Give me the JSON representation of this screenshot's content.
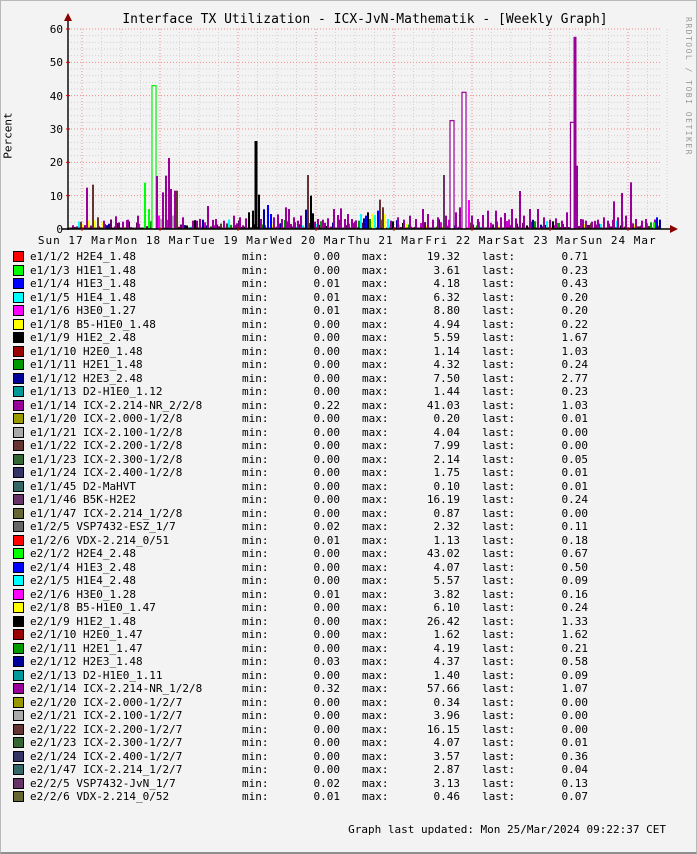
{
  "header": {
    "title": "Interface TX Utilization - ICX-JvN-Mathematik - [Weekly Graph]"
  },
  "watermark": "RRDTOOL / TOBI OETIKER",
  "footer": "Graph last updated: Mon 25/Mar/2024 09:22:37 CET",
  "chart_data": {
    "type": "bar",
    "title": "Interface TX Utilization - ICX-JvN-Mathematik - [Weekly Graph]",
    "ylabel": "Percent",
    "ylim": [
      0,
      60
    ],
    "yticks": [
      0,
      10,
      20,
      30,
      40,
      50,
      60
    ],
    "xticklabels": [
      "Sun 17 Mar",
      "Mon 18 Mar",
      "Tue 19 Mar",
      "Wed 20 Mar",
      "Thu 21 Mar",
      "Fri 22 Mar",
      "Sat 23 Mar",
      "Sun 24 Mar"
    ],
    "grid": {
      "major_color": "#ef8e8e",
      "minor_color": "#d2d2d2",
      "style": "dotted"
    },
    "axis_arrow_color": "#8b0000",
    "palette": {
      "P": {
        "f": "#990099"
      },
      "M": {
        "f": "#FF00FF"
      },
      "G": {
        "f": "#00FF00"
      },
      "GW": {
        "f": "#ffffff",
        "s": "#00EE00"
      },
      "PW": {
        "f": "#ffffff",
        "s": "#990099"
      },
      "GRY": {
        "f": "#AAAAAA"
      },
      "BR": {
        "f": "#663333"
      },
      "K": {
        "f": "#000000"
      },
      "NB": {
        "f": "#000099"
      },
      "B": {
        "f": "#0000FF"
      },
      "C": {
        "f": "#00FFFF"
      },
      "Y": {
        "f": "#FFFF00"
      },
      "GRN2": {
        "f": "#009900"
      },
      "DP": {
        "f": "#663366"
      }
    },
    "spikes": [
      [
        19,
        12.4,
        "P"
      ],
      [
        25,
        13.3,
        "BR"
      ],
      [
        30,
        3.5,
        "BR"
      ],
      [
        36,
        2.5,
        "P"
      ],
      [
        48,
        3.8,
        "P"
      ],
      [
        55,
        2.2,
        "P"
      ],
      [
        60,
        2.8,
        "P"
      ],
      [
        70,
        4,
        "P"
      ],
      [
        77,
        13.9,
        "G"
      ],
      [
        81,
        6,
        "G"
      ],
      [
        84,
        2.5,
        "M"
      ],
      [
        86,
        43.0,
        "GW",
        4
      ],
      [
        89,
        15.9,
        "P"
      ],
      [
        91,
        4,
        "M"
      ],
      [
        93,
        3,
        "GRY"
      ],
      [
        95,
        11,
        "P"
      ],
      [
        98,
        16,
        "P"
      ],
      [
        101,
        21.3,
        "P"
      ],
      [
        103,
        12,
        "P"
      ],
      [
        105,
        4,
        "GRY"
      ],
      [
        107,
        11.5,
        "P"
      ],
      [
        109,
        11.5,
        "BR"
      ],
      [
        115,
        3.5,
        "P"
      ],
      [
        125,
        2.5,
        "P"
      ],
      [
        132,
        3,
        "P"
      ],
      [
        140,
        6.9,
        "P"
      ],
      [
        148,
        3,
        "P"
      ],
      [
        156,
        2.5,
        "P"
      ],
      [
        166,
        4,
        "P"
      ],
      [
        172,
        3.5,
        "P"
      ],
      [
        178,
        3.2,
        "P"
      ],
      [
        181,
        5,
        "K"
      ],
      [
        185,
        5.5,
        "K"
      ],
      [
        188,
        26.4,
        "K",
        3
      ],
      [
        191,
        10.3,
        "K"
      ],
      [
        193,
        3,
        "P"
      ],
      [
        196,
        5.9,
        "NB"
      ],
      [
        200,
        7.2,
        "B"
      ],
      [
        203,
        4.5,
        "B"
      ],
      [
        206,
        3.5,
        "P"
      ],
      [
        210,
        4.4,
        "P"
      ],
      [
        214,
        3,
        "P"
      ],
      [
        218,
        6.5,
        "P"
      ],
      [
        221,
        6,
        "P"
      ],
      [
        226,
        3.5,
        "P"
      ],
      [
        230,
        2.5,
        "P"
      ],
      [
        233,
        4,
        "P"
      ],
      [
        238,
        5.8,
        "NB"
      ],
      [
        240,
        16.2,
        "BR"
      ],
      [
        243,
        10,
        "K"
      ],
      [
        245,
        4.7,
        "K"
      ],
      [
        250,
        3,
        "P"
      ],
      [
        255,
        2.8,
        "P"
      ],
      [
        260,
        3.2,
        "P"
      ],
      [
        266,
        6,
        "P"
      ],
      [
        270,
        4.2,
        "P"
      ],
      [
        273,
        6.2,
        "P"
      ],
      [
        277,
        3,
        "P"
      ],
      [
        280,
        4.5,
        "P"
      ],
      [
        284,
        3,
        "P"
      ],
      [
        288,
        2.6,
        "P"
      ],
      [
        293,
        4.5,
        "C"
      ],
      [
        296,
        3.2,
        "NB"
      ],
      [
        298,
        4,
        "B"
      ],
      [
        300,
        5,
        "K"
      ],
      [
        302,
        3,
        "GRN2"
      ],
      [
        305,
        4.6,
        "Y"
      ],
      [
        307,
        4.2,
        "C"
      ],
      [
        310,
        5.5,
        "B"
      ],
      [
        312,
        8.8,
        "BR"
      ],
      [
        315,
        6.5,
        "BR"
      ],
      [
        317,
        4.5,
        "Y"
      ],
      [
        320,
        3,
        "C"
      ],
      [
        323,
        2.5,
        "P"
      ],
      [
        330,
        3.5,
        "P"
      ],
      [
        336,
        2.8,
        "P"
      ],
      [
        342,
        4,
        "P"
      ],
      [
        348,
        3,
        "P"
      ],
      [
        355,
        6,
        "P"
      ],
      [
        360,
        4.5,
        "P"
      ],
      [
        365,
        2.8,
        "P"
      ],
      [
        370,
        3.5,
        "P"
      ],
      [
        376,
        16.2,
        "DP"
      ],
      [
        378,
        4,
        "P"
      ],
      [
        384,
        32.5,
        "PW",
        4
      ],
      [
        388,
        5,
        "P"
      ],
      [
        392,
        6.5,
        "P"
      ],
      [
        396,
        41.0,
        "PW",
        4
      ],
      [
        401,
        8.7,
        "M"
      ],
      [
        404,
        4,
        "P"
      ],
      [
        410,
        3,
        "P"
      ],
      [
        415,
        4.2,
        "P"
      ],
      [
        420,
        5.5,
        "P"
      ],
      [
        428,
        5.5,
        "P"
      ],
      [
        433,
        3.5,
        "P"
      ],
      [
        437,
        4.8,
        "P"
      ],
      [
        444,
        6,
        "P"
      ],
      [
        448,
        3.2,
        "P"
      ],
      [
        452,
        11.4,
        "P"
      ],
      [
        456,
        4,
        "P"
      ],
      [
        462,
        6,
        "P"
      ],
      [
        470,
        6,
        "P"
      ],
      [
        476,
        3.5,
        "P"
      ],
      [
        482,
        2.8,
        "P"
      ],
      [
        488,
        3.2,
        "P"
      ],
      [
        494,
        2.5,
        "P"
      ],
      [
        499,
        5,
        "P"
      ],
      [
        503,
        10,
        "P"
      ],
      [
        505,
        32,
        "PW",
        5
      ],
      [
        507,
        57.66,
        "P",
        3
      ],
      [
        509,
        19,
        "P"
      ],
      [
        513,
        3,
        "P"
      ],
      [
        518,
        2.5,
        "P"
      ],
      [
        524,
        2.2,
        "P"
      ],
      [
        530,
        2.8,
        "P"
      ],
      [
        536,
        3.5,
        "P"
      ],
      [
        540,
        2.5,
        "P"
      ],
      [
        546,
        8.3,
        "P"
      ],
      [
        550,
        3.5,
        "P"
      ],
      [
        554,
        10.8,
        "P"
      ],
      [
        558,
        4,
        "P"
      ],
      [
        563,
        14,
        "P"
      ],
      [
        568,
        3,
        "P"
      ],
      [
        574,
        2.5,
        "P"
      ],
      [
        578,
        3,
        "P"
      ],
      [
        583,
        2,
        "GRN2"
      ],
      [
        586,
        2,
        "G"
      ],
      [
        589,
        3.5,
        "B"
      ],
      [
        592,
        2.8,
        "NB"
      ]
    ],
    "noise": {
      "seed": 42,
      "max": 2.6,
      "step": 2,
      "colors": [
        "#990099",
        "#990099",
        "#990099",
        "#CC00CC",
        "#660066",
        "#663333",
        "#000000",
        "#000099",
        "#009900",
        "#FFFF00",
        "#00FFFF"
      ]
    },
    "baseline_color": "#33090f"
  },
  "legend": {
    "labels": {
      "min": "min:",
      "max": "max:",
      "last": "last:"
    },
    "rows": [
      {
        "name": "e1/1/2 H2E4_1.48",
        "color": "#FF0000",
        "min": "0.00",
        "max": "19.32",
        "last": "0.71"
      },
      {
        "name": "e1/1/3 H1E1_1.48",
        "color": "#00FF00",
        "min": "0.00",
        "max": "3.61",
        "last": "0.23"
      },
      {
        "name": "e1/1/4 H1E3_1.48",
        "color": "#0000FF",
        "min": "0.01",
        "max": "4.18",
        "last": "0.43"
      },
      {
        "name": "e1/1/5 H1E4_1.48",
        "color": "#00FFFF",
        "min": "0.01",
        "max": "6.32",
        "last": "0.20"
      },
      {
        "name": "e1/1/6 H3E0_1.27",
        "color": "#FF00FF",
        "min": "0.01",
        "max": "8.80",
        "last": "0.20"
      },
      {
        "name": "e1/1/8 B5-H1E0_1.48",
        "color": "#FFFF00",
        "min": "0.00",
        "max": "4.94",
        "last": "0.22"
      },
      {
        "name": "e1/1/9 H1E2_2.48",
        "color": "#000000",
        "min": "0.00",
        "max": "5.59",
        "last": "1.67"
      },
      {
        "name": "e1/1/10 H2E0_1.48",
        "color": "#990000",
        "min": "0.00",
        "max": "1.14",
        "last": "1.03"
      },
      {
        "name": "e1/1/11 H2E1_1.48",
        "color": "#009900",
        "min": "0.00",
        "max": "4.32",
        "last": "0.24"
      },
      {
        "name": "e1/1/12 H2E3_2.48",
        "color": "#000099",
        "min": "0.00",
        "max": "7.50",
        "last": "2.77"
      },
      {
        "name": "e1/1/13 D2-H1E0_1.12",
        "color": "#009999",
        "min": "0.00",
        "max": "1.44",
        "last": "0.23"
      },
      {
        "name": "e1/1/14 ICX-2.214-NR_2/2/8",
        "color": "#990099",
        "min": "0.22",
        "max": "41.03",
        "last": "1.03"
      },
      {
        "name": "e1/1/20 ICX-2.000-1/2/8",
        "color": "#999900",
        "min": "0.00",
        "max": "0.20",
        "last": "0.01"
      },
      {
        "name": "e1/1/21 ICX-2.100-1/2/8",
        "color": "#AAAAAA",
        "min": "0.00",
        "max": "4.04",
        "last": "0.00"
      },
      {
        "name": "e1/1/22 ICX-2.200-1/2/8",
        "color": "#663333",
        "min": "0.00",
        "max": "7.99",
        "last": "0.00"
      },
      {
        "name": "e1/1/23 ICX-2.300-1/2/8",
        "color": "#336633",
        "min": "0.00",
        "max": "2.14",
        "last": "0.05"
      },
      {
        "name": "e1/1/24 ICX-2.400-1/2/8",
        "color": "#333366",
        "min": "0.00",
        "max": "1.75",
        "last": "0.01"
      },
      {
        "name": "e1/1/45 D2-MaHVT",
        "color": "#336666",
        "min": "0.00",
        "max": "0.10",
        "last": "0.01"
      },
      {
        "name": "e1/1/46 B5K-H2E2",
        "color": "#663366",
        "min": "0.00",
        "max": "16.19",
        "last": "0.24"
      },
      {
        "name": "e1/1/47 ICX-2.214_1/2/8",
        "color": "#666633",
        "min": "0.00",
        "max": "0.87",
        "last": "0.00"
      },
      {
        "name": "e1/2/5 VSP7432-ESZ_1/7",
        "color": "#666666",
        "min": "0.02",
        "max": "2.32",
        "last": "0.11"
      },
      {
        "name": "e1/2/6 VDX-2.214_0/51",
        "color": "#FF0000",
        "min": "0.01",
        "max": "1.13",
        "last": "0.18"
      },
      {
        "name": "e2/1/2 H2E4_2.48",
        "color": "#00FF00",
        "min": "0.00",
        "max": "43.02",
        "last": "0.67"
      },
      {
        "name": "e2/1/4 H1E3_2.48",
        "color": "#0000FF",
        "min": "0.00",
        "max": "4.07",
        "last": "0.50"
      },
      {
        "name": "e2/1/5 H1E4_2.48",
        "color": "#00FFFF",
        "min": "0.00",
        "max": "5.57",
        "last": "0.09"
      },
      {
        "name": "e2/1/6 H3E0_1.28",
        "color": "#FF00FF",
        "min": "0.01",
        "max": "3.82",
        "last": "0.16"
      },
      {
        "name": "e2/1/8 B5-H1E0_1.47",
        "color": "#FFFF00",
        "min": "0.00",
        "max": "6.10",
        "last": "0.24"
      },
      {
        "name": "e2/1/9 H1E2_1.48",
        "color": "#000000",
        "min": "0.00",
        "max": "26.42",
        "last": "1.33"
      },
      {
        "name": "e2/1/10 H2E0_1.47",
        "color": "#990000",
        "min": "0.00",
        "max": "1.62",
        "last": "1.62"
      },
      {
        "name": "e2/1/11 H2E1_1.47",
        "color": "#009900",
        "min": "0.00",
        "max": "4.19",
        "last": "0.21"
      },
      {
        "name": "e2/1/12 H2E3_1.48",
        "color": "#000099",
        "min": "0.03",
        "max": "4.37",
        "last": "0.58"
      },
      {
        "name": "e2/1/13 D2-H1E0_1.11",
        "color": "#009999",
        "min": "0.00",
        "max": "1.40",
        "last": "0.09"
      },
      {
        "name": "e2/1/14 ICX-2.214-NR_1/2/8",
        "color": "#990099",
        "min": "0.32",
        "max": "57.66",
        "last": "1.07"
      },
      {
        "name": "e2/1/20 ICX-2.000-1/2/7",
        "color": "#999900",
        "min": "0.00",
        "max": "0.34",
        "last": "0.00"
      },
      {
        "name": "e2/1/21 ICX-2.100-1/2/7",
        "color": "#AAAAAA",
        "min": "0.00",
        "max": "3.96",
        "last": "0.00"
      },
      {
        "name": "e2/1/22 ICX-2.200-1/2/7",
        "color": "#663333",
        "min": "0.00",
        "max": "16.15",
        "last": "0.00"
      },
      {
        "name": "e2/1/23 ICX-2.300-1/2/7",
        "color": "#336633",
        "min": "0.00",
        "max": "4.07",
        "last": "0.01"
      },
      {
        "name": "e2/1/24 ICX-2.400-1/2/7",
        "color": "#333366",
        "min": "0.00",
        "max": "3.57",
        "last": "0.36"
      },
      {
        "name": "e2/1/47 ICX-2.214_1/2/7",
        "color": "#336666",
        "min": "0.00",
        "max": "2.87",
        "last": "0.04"
      },
      {
        "name": "e2/2/5 VSP7432-JvN_1/7",
        "color": "#663366",
        "min": "0.02",
        "max": "3.13",
        "last": "0.13"
      },
      {
        "name": "e2/2/6 VDX-2.214_0/52",
        "color": "#666633",
        "min": "0.01",
        "max": "0.46",
        "last": "0.07"
      }
    ]
  }
}
